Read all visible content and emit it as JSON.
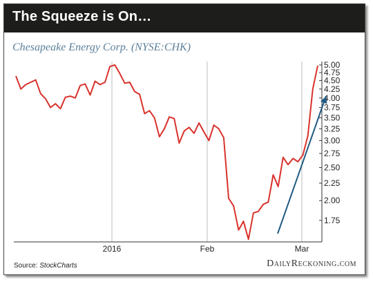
{
  "header": {
    "title": "The Squeeze is On…"
  },
  "chart": {
    "subtitle": "Chesapeake Energy Corp. (NYSE:CHK)"
  },
  "footer": {
    "source_prefix": "Source: ",
    "source_name": "StockCharts",
    "brand": "DailyReckoning.com"
  },
  "colors": {
    "price_line": "#d9312b",
    "trend_arrow": "#1f5b82",
    "title_bg": "#1d1d1b",
    "subtitle": "#5b7f99"
  },
  "chart_data": {
    "type": "line",
    "title": "Chesapeake Energy Corp. (NYSE:CHK)",
    "y_scale": "log",
    "ylim": [
      1.52,
      5.1
    ],
    "y_ticks": [
      "5.00",
      "4.75",
      "4.50",
      "4.25",
      "4.00",
      "3.75",
      "3.50",
      "3.25",
      "3.00",
      "2.75",
      "2.50",
      "2.25",
      "2.00",
      "1.75"
    ],
    "x_ticks": [
      "2016",
      "Feb",
      "Mar"
    ],
    "grid": "vertical lines at 2016, Feb, Mar",
    "legend": "none",
    "series": [
      {
        "values": [
          4.64,
          4.25,
          4.38,
          4.45,
          4.52,
          4.12,
          3.98,
          3.75,
          3.85,
          3.72,
          4.02,
          4.05,
          4.0,
          4.35,
          4.4,
          4.08,
          4.48,
          4.38,
          4.45,
          4.95,
          5.0,
          4.72,
          4.42,
          4.45,
          4.18,
          4.1,
          3.6,
          3.67,
          3.5,
          3.08,
          3.25,
          3.52,
          3.48,
          2.95,
          3.2,
          3.28,
          3.15,
          3.38,
          3.18,
          3.0,
          3.33,
          3.25,
          3.06,
          2.03,
          1.93,
          1.64,
          1.74,
          1.54,
          1.84,
          1.86,
          1.95,
          1.98,
          2.38,
          2.2,
          2.68,
          2.55,
          2.66,
          2.6,
          2.72,
          3.1,
          4.25,
          4.98
        ]
      }
    ],
    "trend_arrow": {
      "from": 2.01,
      "to": 2.0,
      "y_from": 1.6,
      "y_to": 4.05
    }
  }
}
